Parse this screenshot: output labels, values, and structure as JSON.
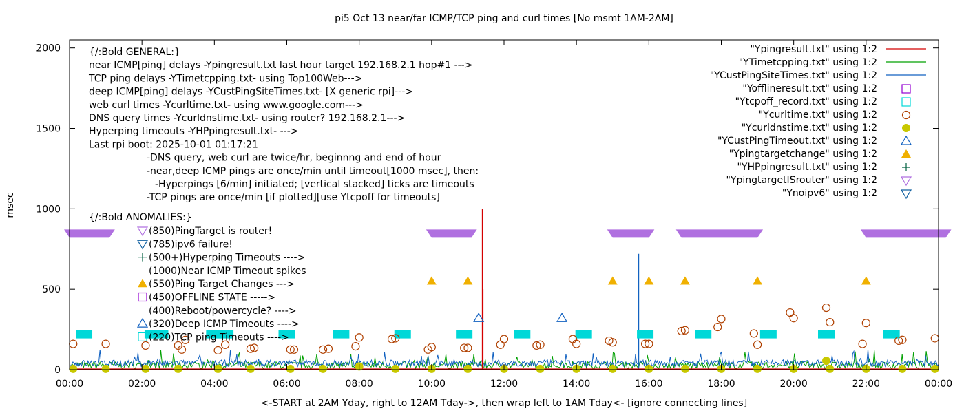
{
  "chart_data": {
    "type": "scatter",
    "title": "pi5 Oct 13  near/far ICMP/TCP ping and curl times [No msmt 1AM-2AM]",
    "xlabel": "<-START at 2AM Yday, right to 12AM Tday->, then wrap left to 1AM Tday<- [ignore connecting lines]",
    "ylabel": "msec",
    "xlim": [
      0,
      24
    ],
    "ylim": [
      0,
      2050
    ],
    "x_ticks": [
      "00:00",
      "02:00",
      "04:00",
      "06:00",
      "08:00",
      "10:00",
      "12:00",
      "14:00",
      "16:00",
      "18:00",
      "20:00",
      "22:00",
      "00:00"
    ],
    "y_ticks": [
      "0",
      "500",
      "1000",
      "1500",
      "2000"
    ],
    "grid": false,
    "legend_position": "top-right",
    "annotation_lines": [
      "{/:Bold GENERAL:}",
      "near ICMP[ping] delays -Ypingresult.txt last hour target 192.168.2.1 hop#1 --->",
      "TCP ping delays -YTimetcpping.txt- using Top100Web--->",
      "deep ICMP[ping] delays -YCustPingSiteTimes.txt- [X generic rpi]--->",
      "web curl times -Ycurltime.txt- using www.google.com--->",
      "DNS query times -Ycurldnstime.txt- using router? 192.168.2.1--->",
      "Hyperping timeouts -YHPpingresult.txt- --->",
      "Last rpi boot: 2025-10-01 01:17:21",
      "-DNS query, web curl are twice/hr, beginnng and end of hour",
      "-near,deep ICMP pings are once/min until timeout[1000 msec], then:",
      "-Hyperpings [6/min] initiated; [vertical stacked] ticks are timeouts",
      "-TCP pings are once/min [if plotted][use Ytcpoff for timeouts]",
      "{/:Bold ANOMALIES:}"
    ],
    "anomaly_lines": [
      "(850)PingTarget is router!",
      "(785)ipv6 failure!",
      "(500+)Hyperping Timeouts ---->",
      "(1000)Near ICMP Timeout spikes",
      "(550)Ping Target Changes --->",
      "(450)OFFLINE STATE ----->",
      "(400)Reboot/powercycle? ---->",
      "(320)Deep ICMP Timeouts ---->",
      "(220)TCP ping Timeouts ---->"
    ],
    "series": [
      {
        "name": "\"Ypingresult.txt\" using 1:2",
        "style": "line",
        "color": "#d40000",
        "spikes": [
          [
            11.4,
            1000
          ],
          [
            11.42,
            500
          ]
        ]
      },
      {
        "name": "\"YTimetcpping.txt\" using 1:2",
        "style": "line",
        "color": "#00a000"
      },
      {
        "name": "\"YCustPingSiteTimes.txt\" using 1:2",
        "style": "line",
        "color": "#1060c0",
        "spikes": [
          [
            15.72,
            720
          ]
        ]
      },
      {
        "name": "\"Yofflineresult.txt\" using 1:2",
        "style": "open-square",
        "color": "#9400d3",
        "points": []
      },
      {
        "name": "\"Ytcpoff_record.txt\" using 1:2",
        "style": "filled-square",
        "color": "#00d8d8",
        "points": [
          [
            0.4,
            220
          ],
          [
            2.3,
            220
          ],
          [
            2.5,
            220
          ],
          [
            4.0,
            220
          ],
          [
            4.3,
            220
          ],
          [
            6.0,
            220
          ],
          [
            7.5,
            220
          ],
          [
            9.2,
            220
          ],
          [
            10.9,
            220
          ],
          [
            12.5,
            220
          ],
          [
            14.2,
            220
          ],
          [
            15.9,
            220
          ],
          [
            17.5,
            220
          ],
          [
            19.3,
            220
          ],
          [
            20.9,
            220
          ],
          [
            22.7,
            220
          ]
        ]
      },
      {
        "name": "\"Ycurltime.txt\" using 1:2",
        "style": "open-circle",
        "color": "#b04000",
        "points": [
          [
            0.1,
            160
          ],
          [
            1.0,
            160
          ],
          [
            2.1,
            150
          ],
          [
            3.0,
            150
          ],
          [
            3.1,
            125
          ],
          [
            3.2,
            185
          ],
          [
            4.1,
            120
          ],
          [
            4.3,
            155
          ],
          [
            5.0,
            130
          ],
          [
            5.1,
            135
          ],
          [
            6.1,
            125
          ],
          [
            6.2,
            125
          ],
          [
            7.0,
            125
          ],
          [
            7.15,
            130
          ],
          [
            7.9,
            145
          ],
          [
            8.0,
            200
          ],
          [
            8.9,
            190
          ],
          [
            9.0,
            195
          ],
          [
            9.9,
            125
          ],
          [
            10.0,
            140
          ],
          [
            10.9,
            135
          ],
          [
            11.0,
            135
          ],
          [
            11.9,
            155
          ],
          [
            12.0,
            190
          ],
          [
            12.9,
            150
          ],
          [
            13.0,
            155
          ],
          [
            13.9,
            190
          ],
          [
            14.0,
            160
          ],
          [
            14.9,
            180
          ],
          [
            15.0,
            170
          ],
          [
            15.9,
            160
          ],
          [
            16.0,
            160
          ],
          [
            16.9,
            240
          ],
          [
            17.0,
            245
          ],
          [
            17.9,
            265
          ],
          [
            18.0,
            315
          ],
          [
            18.9,
            225
          ],
          [
            19.0,
            155
          ],
          [
            19.9,
            355
          ],
          [
            20.0,
            320
          ],
          [
            20.9,
            385
          ],
          [
            21.0,
            295
          ],
          [
            21.9,
            160
          ],
          [
            22.0,
            290
          ],
          [
            22.9,
            180
          ],
          [
            23.0,
            185
          ],
          [
            23.9,
            195
          ]
        ]
      },
      {
        "name": "\"Ycurldnstime.txt\" using 1:2",
        "style": "filled-circle",
        "color": "#c8c800",
        "points": [
          [
            0.1,
            5
          ],
          [
            1.0,
            5
          ],
          [
            2.1,
            5
          ],
          [
            3.0,
            5
          ],
          [
            4.1,
            5
          ],
          [
            5.0,
            5
          ],
          [
            6.1,
            5
          ],
          [
            7.0,
            5
          ],
          [
            8.0,
            20
          ],
          [
            9.0,
            5
          ],
          [
            10.0,
            5
          ],
          [
            11.0,
            5
          ],
          [
            12.0,
            5
          ],
          [
            13.0,
            5
          ],
          [
            14.0,
            5
          ],
          [
            15.0,
            5
          ],
          [
            16.0,
            5
          ],
          [
            17.0,
            5
          ],
          [
            18.0,
            5
          ],
          [
            19.0,
            5
          ],
          [
            20.0,
            5
          ],
          [
            20.9,
            55
          ],
          [
            21.0,
            5
          ],
          [
            22.0,
            5
          ],
          [
            23.0,
            5
          ],
          [
            23.9,
            5
          ]
        ]
      },
      {
        "name": "\"YCustPingTimeout.txt\" using 1:2",
        "style": "open-triangle-up",
        "color": "#1060c0",
        "points": [
          [
            11.3,
            320
          ],
          [
            13.6,
            320
          ]
        ]
      },
      {
        "name": "\"Ypingtargetchange\" using 1:2",
        "style": "filled-triangle-up",
        "color": "#f0b000",
        "points": [
          [
            10.0,
            550
          ],
          [
            11.0,
            550
          ],
          [
            15.0,
            550
          ],
          [
            16.0,
            550
          ],
          [
            17.0,
            550
          ],
          [
            19.0,
            550
          ],
          [
            22.0,
            550
          ]
        ]
      },
      {
        "name": "\"YHPpingresult.txt\" using 1:2",
        "style": "plus",
        "color": "#006040",
        "points": []
      },
      {
        "name": "\"YpingtargetISrouter\" using 1:2",
        "style": "open-triangle-down",
        "color": "#b070e0",
        "ranges": [
          [
            0.0,
            1.1
          ],
          [
            10.0,
            11.1
          ],
          [
            15.0,
            16.0
          ],
          [
            16.9,
            19.0
          ],
          [
            22.0,
            24.2
          ]
        ],
        "value": 850
      },
      {
        "name": "\"Ynoipv6\" using 1:2",
        "style": "open-triangle-down",
        "color": "#1060a0",
        "points": []
      }
    ]
  }
}
